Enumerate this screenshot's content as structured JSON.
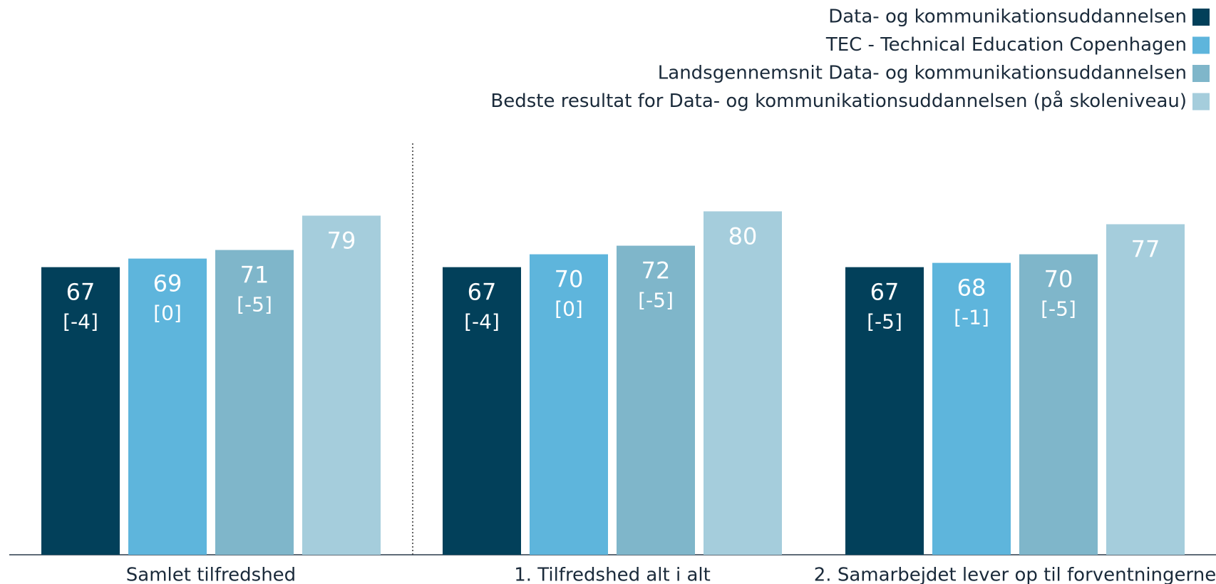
{
  "chart_data": {
    "type": "bar",
    "categories": [
      "Samlet tilfredshed",
      "1. Tilfredshed alt i alt",
      "2. Samarbejdet lever op til forventningerne"
    ],
    "ylim": [
      0,
      100
    ],
    "legend": "top-right",
    "series": [
      {
        "name": "Data- og kommunikationsuddannelsen",
        "color": "#02405a",
        "values": [
          67,
          67,
          67
        ],
        "annotations": [
          "[-4]",
          "[-4]",
          "[-5]"
        ]
      },
      {
        "name": "TEC - Technical Education Copenhagen",
        "color": "#5eb5dc",
        "values": [
          69,
          70,
          68
        ],
        "annotations": [
          "[0]",
          "[0]",
          "[-1]"
        ]
      },
      {
        "name": "Landsgennemsnit Data- og kommunikationsuddannelsen",
        "color": "#7fb6ca",
        "values": [
          71,
          72,
          70
        ],
        "annotations": [
          "[-5]",
          "[-5]",
          "[-5]"
        ]
      },
      {
        "name": "Bedste resultat for Data- og kommunikationsuddannelsen (på skoleniveau)",
        "color": "#a5cddc",
        "values": [
          79,
          80,
          77
        ]
      }
    ]
  }
}
